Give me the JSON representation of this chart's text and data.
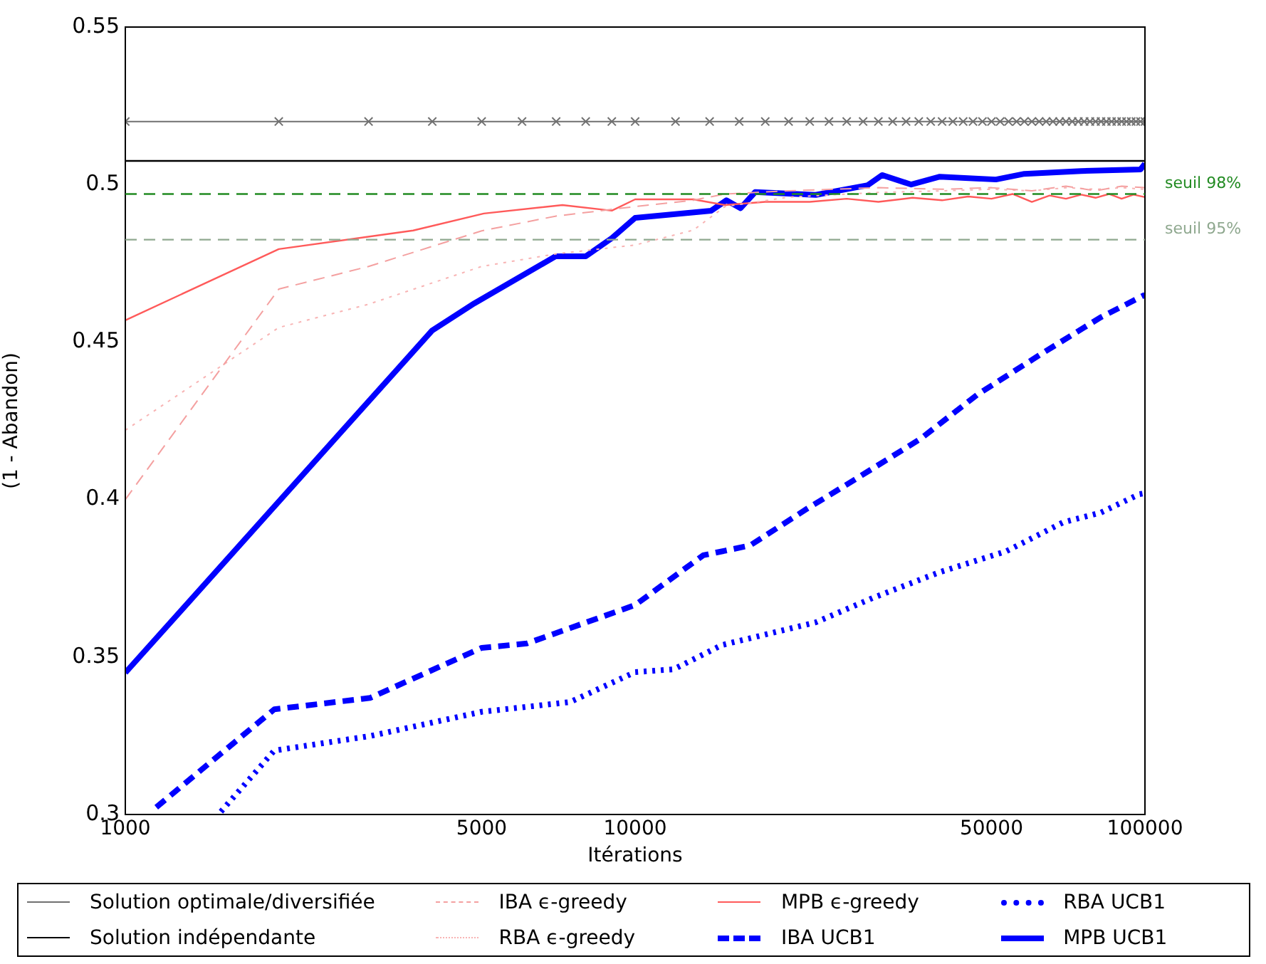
{
  "chart_data": {
    "type": "line",
    "xlabel": "Itérations",
    "ylabel": "(1 - Abandon)",
    "log": "x",
    "xlim": [
      1000,
      100000
    ],
    "xticks": [
      1000,
      5000,
      10000,
      50000,
      100000
    ],
    "ylim": [
      0.3,
      0.55
    ],
    "yticks": [
      0.3,
      0.35,
      0.4,
      0.45,
      0.5,
      0.55
    ],
    "grid": false,
    "legend": "bottom",
    "ref_lines": [
      {
        "axis": "y",
        "value": 0.497,
        "label": "seuil 98%",
        "color": "#228b22",
        "line_style": "dashed"
      },
      {
        "axis": "y",
        "value": 0.4825,
        "label": "seuil 95%",
        "color": "#8fa88f",
        "line_style": "dashed"
      }
    ],
    "series": [
      {
        "name": "Solution optimale/diversifiée",
        "color": "#707070",
        "marker": "cross",
        "line_style": "solid",
        "x": [
          1000,
          2000,
          3000,
          4000,
          5000,
          6000,
          7000,
          8000,
          9000,
          10000,
          12000,
          14000,
          16000,
          18000,
          20000,
          22000,
          24000,
          26000,
          28000,
          30000,
          32000,
          34000,
          36000,
          38000,
          40000,
          42000,
          44000,
          46000,
          48000,
          50000,
          52000,
          54000,
          56000,
          58000,
          60000,
          62000,
          64000,
          66000,
          68000,
          70000,
          72000,
          74000,
          76000,
          78000,
          80000,
          82000,
          84000,
          86000,
          88000,
          90000,
          92000,
          94000,
          96000,
          98000,
          100000
        ],
        "values": [
          0.52,
          0.52,
          0.52,
          0.52,
          0.52,
          0.52,
          0.52,
          0.52,
          0.52,
          0.52,
          0.52,
          0.52,
          0.52,
          0.52,
          0.52,
          0.52,
          0.52,
          0.52,
          0.52,
          0.52,
          0.52,
          0.52,
          0.52,
          0.52,
          0.52,
          0.52,
          0.52,
          0.52,
          0.52,
          0.52,
          0.52,
          0.52,
          0.52,
          0.52,
          0.52,
          0.52,
          0.52,
          0.52,
          0.52,
          0.52,
          0.52,
          0.52,
          0.52,
          0.52,
          0.52,
          0.52,
          0.52,
          0.52,
          0.52,
          0.52,
          0.52,
          0.52,
          0.52,
          0.52,
          0.52
        ]
      },
      {
        "name": "Solution indépendante",
        "color": "#000000",
        "marker": "none",
        "line_style": "solid",
        "x": [
          1000,
          100000
        ],
        "values": [
          0.5075,
          0.5075
        ]
      },
      {
        "name": "IBA ϵ-greedy",
        "color": "#f4a0a0",
        "marker": "none",
        "line_style": "dashed",
        "x": [
          1000,
          2000,
          3000,
          5000,
          7000,
          10000,
          13000,
          15000,
          20000,
          30000,
          40000,
          50000,
          60000,
          70000,
          80000,
          90000,
          100000
        ],
        "values": [
          0.4,
          0.4668,
          0.474,
          0.4853,
          0.49,
          0.493,
          0.495,
          0.497,
          0.498,
          0.499,
          0.4985,
          0.499,
          0.498,
          0.4995,
          0.498,
          0.4995,
          0.499
        ]
      },
      {
        "name": "RBA ϵ-greedy",
        "color": "#f8b4b4",
        "marker": "none",
        "line_style": "dotted",
        "x": [
          1000,
          2000,
          3000,
          5000,
          7000,
          10000,
          13000,
          15000,
          20000,
          30000,
          40000,
          50000,
          60000,
          70000,
          80000,
          90000,
          100000
        ],
        "values": [
          0.422,
          0.4546,
          0.462,
          0.474,
          0.478,
          0.4808,
          0.4855,
          0.493,
          0.496,
          0.4975,
          0.498,
          0.4985,
          0.498,
          0.499,
          0.4985,
          0.499,
          0.4985
        ]
      },
      {
        "name": "MPB ϵ-greedy",
        "color": "#ff5a5a",
        "marker": "none",
        "line_style": "solid",
        "x": [
          1000,
          2000,
          3670,
          5050,
          7200,
          9000,
          10000,
          13000,
          15000,
          18000,
          22000,
          26000,
          30000,
          35000,
          40000,
          45000,
          50000,
          55000,
          60000,
          65000,
          70000,
          75000,
          80000,
          85000,
          90000,
          95000,
          100000
        ],
        "values": [
          0.4569,
          0.4795,
          0.4854,
          0.4908,
          0.4935,
          0.4917,
          0.4953,
          0.4953,
          0.4935,
          0.4945,
          0.4945,
          0.4955,
          0.4945,
          0.4958,
          0.495,
          0.4962,
          0.4955,
          0.497,
          0.4945,
          0.4965,
          0.4955,
          0.4968,
          0.4958,
          0.497,
          0.4955,
          0.4968,
          0.496
        ]
      },
      {
        "name": "IBA UCB1",
        "color": "#0000ff",
        "marker": "none",
        "line_style": "dashed",
        "x": [
          1150,
          1960,
          3020,
          5000,
          6130,
          10000,
          13600,
          16800,
          21800,
          26900,
          36300,
          47000,
          63000,
          81800,
          100000
        ],
        "values": [
          0.3023,
          0.3334,
          0.337,
          0.3529,
          0.3543,
          0.3665,
          0.3823,
          0.3854,
          0.3972,
          0.4062,
          0.4193,
          0.4334,
          0.4465,
          0.4578,
          0.465
        ]
      },
      {
        "name": "RBA UCB1",
        "color": "#0000ff",
        "marker": "none",
        "line_style": "dotted",
        "x": [
          1540,
          1960,
          3020,
          5000,
          7450,
          10000,
          11900,
          14800,
          22600,
          29200,
          39500,
          53500,
          69000,
          81800,
          97500,
          100000
        ],
        "values": [
          0.3009,
          0.3203,
          0.3249,
          0.3326,
          0.3357,
          0.3452,
          0.3461,
          0.3538,
          0.361,
          0.3687,
          0.3769,
          0.3836,
          0.3927,
          0.3958,
          0.4017,
          0.402
        ]
      },
      {
        "name": "MPB UCB1",
        "color": "#0000ff",
        "marker": "none",
        "line_style": "solid",
        "x": [
          1000,
          4000,
          4840,
          6980,
          8000,
          9000,
          10000,
          14100,
          15100,
          16100,
          17200,
          22600,
          28600,
          30500,
          34800,
          39600,
          51000,
          58000,
          75000,
          98000,
          100000
        ],
        "values": [
          0.345,
          0.4537,
          0.4623,
          0.4772,
          0.4772,
          0.483,
          0.4894,
          0.4917,
          0.495,
          0.4925,
          0.4976,
          0.4967,
          0.4998,
          0.503,
          0.5,
          0.5025,
          0.5016,
          0.5034,
          0.5043,
          0.5048,
          0.5066
        ]
      }
    ]
  }
}
